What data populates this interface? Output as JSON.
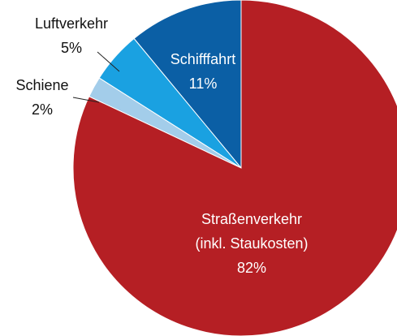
{
  "chart_data": {
    "type": "pie",
    "categories": [
      "Straßenverkehr\n(inkl. Staukosten)",
      "Schiene",
      "Luftverkehr",
      "Schifffahrt"
    ],
    "values": [
      82,
      2,
      5,
      11
    ],
    "value_labels": [
      "82%",
      "2%",
      "5%",
      "11%"
    ],
    "colors": [
      "#b51f24",
      "#a3cdea",
      "#1aa1e1",
      "#0b5fa5"
    ]
  }
}
